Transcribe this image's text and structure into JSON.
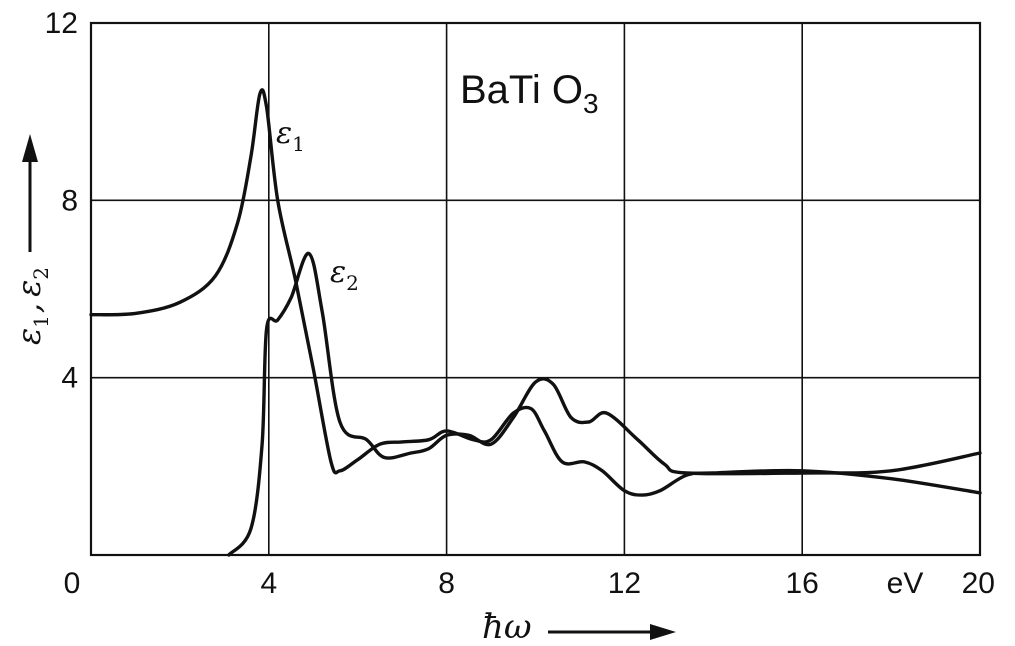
{
  "chart_data": {
    "type": "line",
    "title": "",
    "annotation": {
      "text": "BaTi O",
      "sub": "3"
    },
    "xlabel": "ħω",
    "xunit": "eV",
    "ylabel": {
      "a": "ε",
      "a_sub": "1",
      "sep": ",",
      "b": "ε",
      "b_sub": "2"
    },
    "xlim": [
      0,
      20
    ],
    "ylim": [
      0,
      12
    ],
    "xticks": [
      {
        "value": 0,
        "label": "0"
      },
      {
        "value": 4,
        "label": "4"
      },
      {
        "value": 8,
        "label": "8"
      },
      {
        "value": 12,
        "label": "12"
      },
      {
        "value": 16,
        "label": "16"
      },
      {
        "value": 20,
        "label": "20"
      }
    ],
    "yticks": [
      {
        "value": 4,
        "label": "4"
      },
      {
        "value": 8,
        "label": "8"
      },
      {
        "value": 12,
        "label": "12"
      }
    ],
    "grid": true,
    "series": [
      {
        "name": "ε1",
        "symbol": "ε",
        "sub": "1",
        "points": [
          [
            0,
            5.42
          ],
          [
            1,
            5.45
          ],
          [
            2,
            5.7
          ],
          [
            2.8,
            6.3
          ],
          [
            3.3,
            7.5
          ],
          [
            3.6,
            9
          ],
          [
            3.8,
            10.4
          ],
          [
            3.95,
            10.1
          ],
          [
            4.2,
            8
          ],
          [
            4.6,
            6.2
          ],
          [
            5,
            4.2
          ],
          [
            5.4,
            2.1
          ],
          [
            5.6,
            1.9
          ],
          [
            6,
            2.15
          ],
          [
            6.5,
            2.5
          ],
          [
            7,
            2.55
          ],
          [
            7.6,
            2.6
          ],
          [
            8,
            2.8
          ],
          [
            8.6,
            2.6
          ],
          [
            9,
            2.6
          ],
          [
            9.5,
            3.2
          ],
          [
            9.9,
            3.3
          ],
          [
            10.2,
            2.8
          ],
          [
            10.6,
            2.1
          ],
          [
            11.1,
            2.1
          ],
          [
            11.5,
            1.9
          ],
          [
            12,
            1.45
          ],
          [
            12.4,
            1.35
          ],
          [
            12.8,
            1.45
          ],
          [
            13.4,
            1.8
          ],
          [
            14,
            1.85
          ],
          [
            16,
            1.9
          ],
          [
            18,
            1.72
          ],
          [
            20,
            1.4
          ]
        ]
      },
      {
        "name": "ε2",
        "symbol": "ε",
        "sub": "2",
        "points": [
          [
            3.1,
            0
          ],
          [
            3.6,
            0.6
          ],
          [
            3.85,
            2.5
          ],
          [
            3.95,
            5.1
          ],
          [
            4.2,
            5.3
          ],
          [
            4.5,
            5.8
          ],
          [
            4.9,
            6.8
          ],
          [
            5.2,
            5.5
          ],
          [
            5.6,
            3
          ],
          [
            6.2,
            2.6
          ],
          [
            6.6,
            2.2
          ],
          [
            7.2,
            2.3
          ],
          [
            7.6,
            2.4
          ],
          [
            8,
            2.7
          ],
          [
            8.5,
            2.7
          ],
          [
            9,
            2.5
          ],
          [
            9.5,
            3.1
          ],
          [
            10,
            3.9
          ],
          [
            10.4,
            3.85
          ],
          [
            10.8,
            3.1
          ],
          [
            11.2,
            3
          ],
          [
            11.6,
            3.2
          ],
          [
            12.3,
            2.6
          ],
          [
            12.9,
            2.05
          ],
          [
            13.4,
            1.85
          ],
          [
            16,
            1.85
          ],
          [
            18,
            1.9
          ],
          [
            20,
            2.3
          ]
        ]
      }
    ]
  }
}
